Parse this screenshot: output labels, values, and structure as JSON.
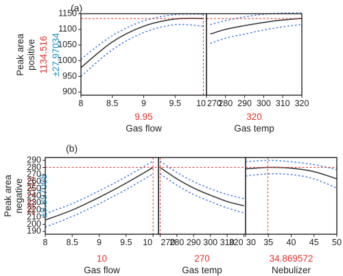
{
  "colors": {
    "fit": "#3a3a3a",
    "ci": "#4a7fe0",
    "ref": "#e0302a",
    "value_red": "#e0302a",
    "value_blue": "#1a8fc4"
  },
  "chart_data": [
    {
      "type": "line",
      "panel_label": "(a)",
      "y_title": [
        "Peak area",
        "positive"
      ],
      "y_value": "1134.516",
      "y_ci": "±27.97034",
      "ylim": [
        890,
        1150
      ],
      "yticks": [
        900,
        950,
        1000,
        1050,
        1100,
        1150
      ],
      "y_ref": 1134.516,
      "panels": [
        {
          "xlabel": "Gas flow",
          "x_value": "9.95",
          "x_ref": 9.95,
          "xlim": [
            8,
            10
          ],
          "xticks": [
            8,
            8.5,
            9,
            9.5,
            10
          ],
          "xtick_labels": [
            "8",
            "8.5",
            "9",
            "9.5",
            "10"
          ],
          "x": [
            8,
            8.5,
            9,
            9.5,
            9.95
          ],
          "fit": [
            978,
            1060,
            1110,
            1133,
            1135
          ],
          "upper": [
            1005,
            1080,
            1127,
            1147,
            1148
          ],
          "lower": [
            950,
            1035,
            1090,
            1115,
            1110
          ]
        },
        {
          "xlabel": "Gas temp",
          "x_value": "320",
          "x_ref": 320,
          "xlim": [
            270,
            320
          ],
          "xticks": [
            270,
            280,
            290,
            300,
            310,
            320
          ],
          "xtick_labels": [
            "270",
            "280",
            "290",
            "300",
            "310",
            "320"
          ],
          "x": [
            272,
            280,
            290,
            300,
            310,
            320
          ],
          "fit": [
            1085,
            1100,
            1112,
            1122,
            1130,
            1135
          ],
          "upper": [
            1115,
            1128,
            1140,
            1148,
            1152,
            1152
          ],
          "lower": [
            1055,
            1072,
            1085,
            1098,
            1108,
            1116
          ]
        }
      ]
    },
    {
      "type": "line",
      "panel_label": "(b)",
      "y_title": [
        "Peak area",
        "negative"
      ],
      "y_value": "280.1918",
      "y_ci": "±9.897008",
      "ylim": [
        186,
        294
      ],
      "yticks": [
        190,
        200,
        210,
        220,
        230,
        240,
        250,
        260,
        270,
        280,
        290
      ],
      "y_ref": 280.1918,
      "panels": [
        {
          "xlabel": "Gas flow",
          "x_value": "10",
          "x_ref": 10,
          "xlim": [
            8,
            10.1
          ],
          "xticks": [
            8,
            8.5,
            9,
            9.5,
            10
          ],
          "xtick_labels": [
            "8",
            "8.5",
            "9",
            "9.5",
            "10"
          ],
          "x": [
            8,
            8.5,
            9,
            9.5,
            10
          ],
          "fit": [
            206,
            220,
            238,
            258,
            280
          ],
          "upper": [
            215,
            229,
            247,
            267,
            289
          ],
          "lower": [
            196,
            211,
            229,
            249,
            271
          ]
        },
        {
          "xlabel": "Gas temp",
          "x_value": "270",
          "x_ref": 270,
          "xlim": [
            269,
            321
          ],
          "xticks": [
            270,
            280,
            290,
            300,
            310,
            320
          ],
          "xtick_labels": [
            "270",
            "280",
            "290",
            "300",
            "310",
            "320"
          ],
          "x": [
            270,
            280,
            290,
            300,
            310,
            320
          ],
          "fit": [
            280,
            264,
            251,
            241,
            232,
            226
          ],
          "upper": [
            289,
            273,
            260,
            250,
            242,
            236
          ],
          "lower": [
            271,
            255,
            242,
            232,
            223,
            216
          ]
        },
        {
          "xlabel": "Nebulizer",
          "x_value": "34.869572",
          "x_ref": 34.869572,
          "xlim": [
            30,
            50
          ],
          "xticks": [
            30,
            35,
            40,
            45,
            50
          ],
          "xtick_labels": [
            "30",
            "35",
            "40",
            "45",
            "50"
          ],
          "x": [
            30,
            35,
            40,
            45,
            50
          ],
          "fit": [
            278,
            280,
            279,
            274,
            264
          ],
          "upper": [
            288,
            290,
            288,
            284,
            277
          ],
          "lower": [
            268,
            271,
            270,
            264,
            251
          ]
        }
      ]
    }
  ]
}
